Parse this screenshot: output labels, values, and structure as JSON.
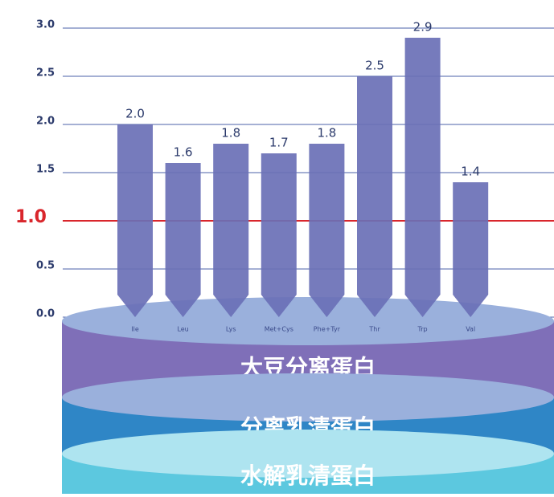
{
  "chart_data": {
    "type": "bar",
    "categories": [
      "Ile",
      "Leu",
      "Lys",
      "Met+Cys",
      "Phe+Tyr",
      "Thr",
      "Trp",
      "Val"
    ],
    "values": [
      2.0,
      1.6,
      1.8,
      1.7,
      1.8,
      2.5,
      2.9,
      1.4
    ],
    "value_labels": [
      "2.0",
      "1.6",
      "1.8",
      "1.7",
      "1.8",
      "2.5",
      "2.9",
      "1.4"
    ],
    "color": "#6a70b6",
    "ylim": [
      0,
      3
    ],
    "yticks": [
      {
        "value": 0,
        "label": "0.0"
      },
      0.5,
      {
        "value": 1,
        "label": "1.0"
      },
      1.5,
      {
        "value": 2,
        "label": "2.0"
      },
      2.5,
      {
        "value": 3,
        "label": "3.0"
      }
    ],
    "grid": true,
    "grid_color": "#4b62a8",
    "reference_line": {
      "value": 1,
      "color": "#d9262c"
    },
    "layers": [
      {
        "label": "水解乳清蛋白",
        "color": "#5cc8df"
      },
      {
        "label": "分离乳清蛋白",
        "color": "#2f86c6"
      },
      {
        "label": "大豆分离蛋白",
        "color": "#7f6fb8"
      }
    ]
  }
}
